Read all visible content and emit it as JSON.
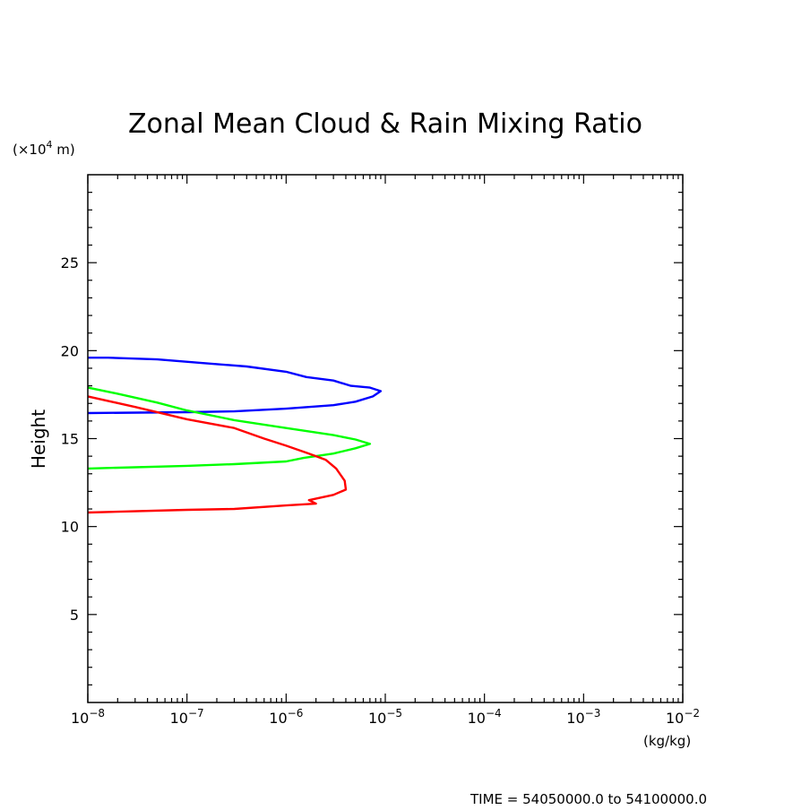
{
  "chart_data": {
    "type": "line",
    "title": "Zonal Mean Cloud & Rain Mixing Ratio",
    "ylabel": "Height",
    "y_unit_prefix": "(×10",
    "y_unit_exponent": "4",
    "y_unit_suffix": " m)",
    "x_unit": "(kg/kg)",
    "x_scale": "log",
    "xlim": [
      1e-08,
      0.01
    ],
    "ylim": [
      0,
      30
    ],
    "x_ticks": [
      {
        "base": "10",
        "exp": "−8",
        "value": 1e-08
      },
      {
        "base": "10",
        "exp": "−7",
        "value": 1e-07
      },
      {
        "base": "10",
        "exp": "−6",
        "value": 1e-06
      },
      {
        "base": "10",
        "exp": "−5",
        "value": 1e-05
      },
      {
        "base": "10",
        "exp": "−4",
        "value": 0.0001
      },
      {
        "base": "10",
        "exp": "−3",
        "value": 0.001
      },
      {
        "base": "10",
        "exp": "−2",
        "value": 0.01
      }
    ],
    "y_ticks": [
      {
        "label": "5",
        "value": 5
      },
      {
        "label": "10",
        "value": 10
      },
      {
        "label": "15",
        "value": 15
      },
      {
        "label": "20",
        "value": 20
      },
      {
        "label": "25",
        "value": 25
      }
    ],
    "grid": false,
    "series": [
      {
        "color": "#0000ff",
        "points": [
          [
            1e-08,
            19.6
          ],
          [
            1.6e-08,
            19.6
          ],
          [
            5e-08,
            19.5
          ],
          [
            1.4e-07,
            19.3
          ],
          [
            4e-07,
            19.1
          ],
          [
            1e-06,
            18.8
          ],
          [
            1.6e-06,
            18.5
          ],
          [
            3e-06,
            18.3
          ],
          [
            4.5e-06,
            18.0
          ],
          [
            7e-06,
            17.9
          ],
          [
            9e-06,
            17.7
          ],
          [
            7.5e-06,
            17.4
          ],
          [
            5e-06,
            17.1
          ],
          [
            3e-06,
            16.9
          ],
          [
            1e-06,
            16.7
          ],
          [
            3e-07,
            16.55
          ],
          [
            1e-07,
            16.5
          ],
          [
            1e-08,
            16.45
          ]
        ]
      },
      {
        "color": "#00ff00",
        "points": [
          [
            1e-08,
            17.9
          ],
          [
            2e-08,
            17.55
          ],
          [
            5e-08,
            17.05
          ],
          [
            1e-07,
            16.6
          ],
          [
            3e-07,
            16.05
          ],
          [
            1e-06,
            15.6
          ],
          [
            3e-06,
            15.2
          ],
          [
            5e-06,
            14.95
          ],
          [
            7e-06,
            14.7
          ],
          [
            5e-06,
            14.45
          ],
          [
            3e-06,
            14.15
          ],
          [
            1.5e-06,
            13.9
          ],
          [
            1e-06,
            13.7
          ],
          [
            3e-07,
            13.55
          ],
          [
            1e-07,
            13.45
          ],
          [
            1e-08,
            13.3
          ]
        ]
      },
      {
        "color": "#ff0000",
        "points": [
          [
            1e-08,
            17.4
          ],
          [
            3e-08,
            16.8
          ],
          [
            1e-07,
            16.1
          ],
          [
            3e-07,
            15.6
          ],
          [
            6e-07,
            15.0
          ],
          [
            1e-06,
            14.6
          ],
          [
            1.6e-06,
            14.2
          ],
          [
            2.5e-06,
            13.8
          ],
          [
            3.2e-06,
            13.3
          ],
          [
            3.9e-06,
            12.6
          ],
          [
            4e-06,
            12.1
          ],
          [
            3e-06,
            11.8
          ],
          [
            1.7e-06,
            11.5
          ],
          [
            2e-06,
            11.3
          ],
          [
            1e-06,
            11.2
          ],
          [
            3e-07,
            11.0
          ],
          [
            1e-07,
            10.95
          ],
          [
            1e-08,
            10.8
          ]
        ]
      }
    ]
  },
  "footer": {
    "time_label": "TIME = 54050000.0 to 54100000.0"
  }
}
